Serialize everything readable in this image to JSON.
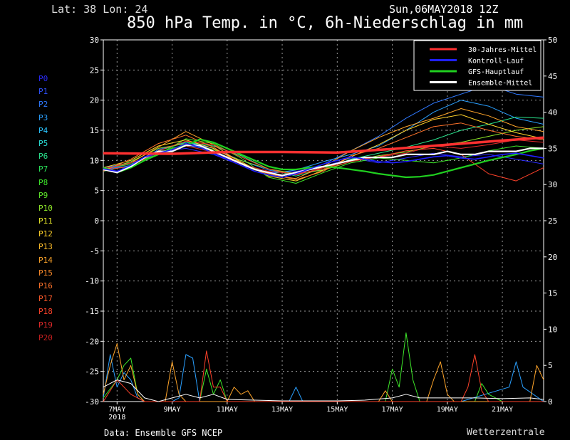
{
  "header": {
    "location": "Lat: 38 Lon: 24",
    "datetime": "Sun,06MAY2018 12Z",
    "title": "850 hPa Temp. in °C, 6h-Niederschlag in mm"
  },
  "footer": {
    "source": "Data: Ensemble GFS NCEP",
    "brand": "Wetterzentrale"
  },
  "members": [
    {
      "name": "P0",
      "color": "#2a2aff"
    },
    {
      "name": "P1",
      "color": "#2f52ff"
    },
    {
      "name": "P2",
      "color": "#2f79ff"
    },
    {
      "name": "P3",
      "color": "#2aa0ff"
    },
    {
      "name": "P4",
      "color": "#2ac4ff"
    },
    {
      "name": "P5",
      "color": "#2ae0d8"
    },
    {
      "name": "P6",
      "color": "#2ae890"
    },
    {
      "name": "P7",
      "color": "#2ae85a"
    },
    {
      "name": "P8",
      "color": "#3ee82a"
    },
    {
      "name": "P9",
      "color": "#5ee82a"
    },
    {
      "name": "P10",
      "color": "#8fe82a"
    },
    {
      "name": "P11",
      "color": "#e8e82a"
    },
    {
      "name": "P12",
      "color": "#ffd22a"
    },
    {
      "name": "P13",
      "color": "#ffbe2a"
    },
    {
      "name": "P14",
      "color": "#ffa52a"
    },
    {
      "name": "P15",
      "color": "#ff8c2a"
    },
    {
      "name": "P16",
      "color": "#ff732a"
    },
    {
      "name": "P17",
      "color": "#ff5a2a"
    },
    {
      "name": "P18",
      "color": "#ff422a"
    },
    {
      "name": "P19",
      "color": "#e52a2a"
    },
    {
      "name": "P20",
      "color": "#c82020"
    }
  ],
  "chart_data": {
    "type": "line",
    "title": "850 hPa Temp. in °C, 6h-Niederschlag in mm",
    "x_tick_labels": [
      "7MAY",
      "9MAY",
      "11MAY",
      "13MAY",
      "15MAY",
      "17MAY",
      "19MAY",
      "21MAY"
    ],
    "x_year_label": "2018",
    "x_tick_days": [
      1,
      3,
      5,
      7,
      9,
      11,
      13,
      15
    ],
    "xlim_days": [
      0.5,
      16.5
    ],
    "y_left_ticks": [
      30,
      25,
      20,
      15,
      10,
      5,
      0,
      -5,
      -10,
      -15,
      -20,
      -25,
      -30
    ],
    "ylim_left": [
      -30,
      30
    ],
    "y_right_ticks": [
      50,
      45,
      40,
      35,
      30,
      25,
      20,
      15,
      10,
      5,
      0
    ],
    "ylim_right": [
      0,
      50
    ],
    "grid": true,
    "legend_position": "top-right",
    "legend": [
      {
        "name": "30-Jahres-Mittel",
        "color": "#ff3030"
      },
      {
        "name": "Kontroll-Lauf",
        "color": "#2020ff"
      },
      {
        "name": "GFS-Hauptlauf",
        "color": "#20d020"
      },
      {
        "name": "Ensemble-Mittel",
        "color": "#ffffff"
      }
    ],
    "series": [
      {
        "name": "30-Jahres-Mittel",
        "color": "#ff3030",
        "axis": "left",
        "x": [
          0.5,
          3,
          5,
          7,
          9,
          11,
          13,
          15,
          16.5
        ],
        "y": [
          11.2,
          11.1,
          11.4,
          11.4,
          11.3,
          11.9,
          12.6,
          13.3,
          13.8
        ]
      },
      {
        "name": "Ensemble-Mittel",
        "color": "#ffffff",
        "axis": "left",
        "x": [
          0.5,
          1,
          1.5,
          2,
          2.5,
          3,
          3.5,
          4,
          4.5,
          5,
          5.5,
          6,
          6.5,
          7,
          7.5,
          8,
          8.5,
          9,
          9.5,
          10,
          10.5,
          11,
          11.5,
          12,
          12.5,
          13,
          13.5,
          14,
          14.5,
          15,
          15.5,
          16,
          16.5
        ],
        "y": [
          8.5,
          8.0,
          9.0,
          10.5,
          11.5,
          11.5,
          12.5,
          12.5,
          11.5,
          10.5,
          9.5,
          8.5,
          8.0,
          7.5,
          8.0,
          8.5,
          9.0,
          9.5,
          10.0,
          10.5,
          10.5,
          10.5,
          11.0,
          11.0,
          11.0,
          11.5,
          11.0,
          11.0,
          11.5,
          11.5,
          11.5,
          12.0,
          12.0
        ]
      },
      {
        "name": "GFS-Hauptlauf",
        "color": "#20d020",
        "axis": "left",
        "x": [
          0.5,
          1,
          1.5,
          2,
          2.5,
          3,
          3.5,
          4,
          4.5,
          5,
          5.5,
          6,
          6.5,
          7,
          7.5,
          8,
          8.5,
          9,
          9.5,
          10,
          10.5,
          11,
          11.5,
          12,
          12.5,
          13,
          13.5,
          14,
          14.5,
          15,
          15.5,
          16,
          16.5
        ],
        "y": [
          8.8,
          8.0,
          8.8,
          10.0,
          11.0,
          12.0,
          12.5,
          13.5,
          13.0,
          12.0,
          11.0,
          10.0,
          9.0,
          8.5,
          8.5,
          8.8,
          9.0,
          8.8,
          8.5,
          8.2,
          7.8,
          7.5,
          7.2,
          7.3,
          7.6,
          8.2,
          8.8,
          9.4,
          10.0,
          10.5,
          11.0,
          11.6,
          12.0
        ]
      },
      {
        "name": "Kontroll-Lauf",
        "color": "#2020ff",
        "axis": "left",
        "x": [
          0.5,
          1,
          1.5,
          2,
          2.5,
          3,
          3.5,
          4,
          4.5,
          5,
          5.5,
          6,
          6.5,
          7,
          7.5,
          8,
          8.5,
          9,
          9.5,
          10,
          10.5,
          11,
          11.5,
          12,
          12.5,
          13,
          13.5,
          14,
          14.5,
          15,
          15.5,
          16,
          16.5
        ],
        "y": [
          8.6,
          8.2,
          9.2,
          10.6,
          11.2,
          11.8,
          12.8,
          12.2,
          11.2,
          10.2,
          9.2,
          8.2,
          7.6,
          7.2,
          7.8,
          8.6,
          9.4,
          10.0,
          10.6,
          10.2,
          9.8,
          9.6,
          9.8,
          10.2,
          10.6,
          10.8,
          10.4,
          10.2,
          10.6,
          11.0,
          11.2,
          10.8,
          10.4
        ]
      },
      {
        "name": "P0",
        "color": "#2a2aff",
        "axis": "left",
        "x": [
          0.5,
          1.5,
          2.5,
          3.5,
          4.5,
          5.5,
          6.5,
          7.5,
          8.5,
          9.5,
          10.5,
          11.5,
          12.5,
          13.5,
          14.5,
          15.5,
          16.5
        ],
        "y": [
          8.4,
          9.4,
          11.4,
          12.0,
          11.0,
          9.2,
          8.0,
          8.2,
          9.0,
          10.4,
          9.6,
          10.4,
          11.2,
          10.6,
          11.0,
          10.2,
          9.4
        ]
      },
      {
        "name": "P2",
        "color": "#2f79ff",
        "axis": "left",
        "x": [
          0.5,
          1.5,
          2.5,
          3.5,
          4.5,
          5.5,
          6.5,
          7.5,
          8.5,
          9.5,
          10.5,
          11.5,
          12.5,
          13.5,
          14.5,
          15.5,
          16.5
        ],
        "y": [
          8.6,
          9.0,
          11.8,
          13.0,
          12.0,
          10.0,
          8.4,
          7.6,
          9.4,
          11.6,
          14.0,
          17.0,
          19.5,
          21.0,
          22.5,
          21.0,
          20.5
        ]
      },
      {
        "name": "P3",
        "color": "#2aa0ff",
        "axis": "left",
        "x": [
          0.5,
          1.5,
          2.5,
          3.5,
          4.5,
          5.5,
          6.5,
          7.5,
          8.5,
          9.5,
          10.5,
          11.5,
          12.5,
          13.5,
          14.5,
          15.5,
          16.5
        ],
        "y": [
          8.8,
          9.6,
          11.0,
          12.6,
          11.6,
          9.6,
          7.8,
          8.4,
          9.8,
          11.0,
          12.4,
          15.0,
          18.0,
          20.0,
          19.0,
          17.0,
          16.0
        ]
      },
      {
        "name": "P6",
        "color": "#2ae890",
        "axis": "left",
        "x": [
          0.5,
          1.5,
          2.5,
          3.5,
          4.5,
          5.5,
          6.5,
          7.5,
          8.5,
          9.5,
          10.5,
          11.5,
          12.5,
          13.5,
          14.5,
          15.5,
          16.5
        ],
        "y": [
          8.2,
          9.2,
          11.6,
          13.0,
          12.4,
          10.8,
          8.6,
          7.4,
          8.6,
          10.2,
          11.2,
          12.2,
          13.4,
          15.0,
          16.0,
          17.2,
          17.0
        ]
      },
      {
        "name": "P8",
        "color": "#3ee82a",
        "axis": "left",
        "x": [
          0.5,
          1.5,
          2.5,
          3.5,
          4.5,
          5.5,
          6.5,
          7.5,
          8.5,
          9.5,
          10.5,
          11.5,
          12.5,
          13.5,
          14.5,
          15.5,
          16.5
        ],
        "y": [
          8.6,
          9.4,
          11.0,
          13.6,
          12.8,
          10.4,
          7.2,
          6.2,
          8.0,
          9.6,
          10.4,
          10.0,
          9.6,
          10.4,
          11.6,
          12.4,
          12.0
        ]
      },
      {
        "name": "P10",
        "color": "#8fe82a",
        "axis": "left",
        "x": [
          0.5,
          1.5,
          2.5,
          3.5,
          4.5,
          5.5,
          6.5,
          7.5,
          8.5,
          9.5,
          10.5,
          11.5,
          12.5,
          13.5,
          14.5,
          15.5,
          16.5
        ],
        "y": [
          8.4,
          9.8,
          12.0,
          12.8,
          11.8,
          10.0,
          8.6,
          7.8,
          8.4,
          9.8,
          10.8,
          11.4,
          12.4,
          13.0,
          14.0,
          15.0,
          15.6
        ]
      },
      {
        "name": "P12",
        "color": "#ffd22a",
        "axis": "left",
        "x": [
          0.5,
          1.5,
          2.5,
          3.5,
          4.5,
          5.5,
          6.5,
          7.5,
          8.5,
          9.5,
          10.5,
          11.5,
          12.5,
          13.5,
          14.5,
          15.5,
          16.5
        ],
        "y": [
          8.8,
          10.0,
          12.4,
          13.4,
          12.0,
          9.8,
          7.4,
          6.6,
          8.4,
          10.6,
          12.6,
          15.0,
          16.8,
          17.6,
          16.0,
          14.6,
          13.6
        ]
      },
      {
        "name": "P14",
        "color": "#ffa52a",
        "axis": "left",
        "x": [
          0.5,
          1.5,
          2.5,
          3.5,
          4.5,
          5.5,
          6.5,
          7.5,
          8.5,
          9.5,
          10.5,
          11.5,
          12.5,
          13.5,
          14.5,
          15.5,
          16.5
        ],
        "y": [
          8.6,
          9.6,
          12.2,
          14.8,
          12.6,
          9.6,
          7.6,
          7.0,
          9.0,
          11.6,
          13.8,
          15.6,
          17.0,
          18.6,
          17.4,
          15.6,
          14.8
        ]
      },
      {
        "name": "P16",
        "color": "#ff732a",
        "axis": "left",
        "x": [
          0.5,
          1.5,
          2.5,
          3.5,
          4.5,
          5.5,
          6.5,
          7.5,
          8.5,
          9.5,
          10.5,
          11.5,
          12.5,
          13.5,
          14.5,
          15.5,
          16.5
        ],
        "y": [
          8.2,
          10.2,
          12.8,
          14.2,
          12.2,
          9.4,
          7.8,
          6.8,
          8.2,
          10.8,
          12.0,
          13.8,
          15.6,
          16.2,
          15.0,
          14.0,
          13.4
        ]
      },
      {
        "name": "P18",
        "color": "#ff422a",
        "axis": "left",
        "x": [
          0.5,
          1.5,
          2.5,
          3.5,
          4.5,
          5.5,
          6.5,
          7.5,
          8.5,
          9.5,
          10.5,
          11.5,
          12.5,
          13.5,
          14.5,
          15.5,
          16.5
        ],
        "y": [
          8.4,
          9.0,
          11.6,
          13.2,
          12.6,
          10.6,
          8.6,
          7.6,
          8.8,
          10.0,
          10.6,
          11.6,
          12.0,
          11.0,
          7.8,
          6.6,
          8.8
        ]
      },
      {
        "name": "P19",
        "color": "#e52a2a",
        "axis": "left",
        "x": [
          0.5,
          1.5,
          2.5,
          3.5,
          4.5,
          5.5,
          6.5,
          7.5,
          8.5,
          9.5,
          10.5,
          11.5,
          12.5,
          13.5,
          14.5,
          15.5,
          16.5
        ],
        "y": [
          8.6,
          9.6,
          11.2,
          12.4,
          11.4,
          9.4,
          8.2,
          7.8,
          8.6,
          9.8,
          10.6,
          11.2,
          12.4,
          12.0,
          12.6,
          13.4,
          13.0
        ]
      },
      {
        "name": "Niederschlag-P3",
        "color": "#2aa0ff",
        "axis": "right",
        "x": [
          0.5,
          0.75,
          1,
          1.25,
          1.5,
          1.75,
          2,
          3,
          3.25,
          3.5,
          3.75,
          4,
          5,
          6,
          7.25,
          7.5,
          7.75,
          11,
          12.5,
          13.5,
          15.25,
          15.5,
          15.75,
          16.5
        ],
        "y": [
          0.5,
          6.5,
          2,
          4,
          3,
          0.5,
          0,
          0,
          0.5,
          6.5,
          6,
          0,
          0,
          0,
          0,
          2,
          0,
          0,
          0,
          0,
          2,
          5.5,
          2,
          0
        ]
      },
      {
        "name": "Niederschlag-P8",
        "color": "#3ee82a",
        "axis": "right",
        "x": [
          0.5,
          1,
          1.25,
          1.5,
          1.75,
          2,
          4,
          4.25,
          4.5,
          4.75,
          5,
          10.75,
          11,
          11.25,
          11.5,
          11.75,
          12,
          14,
          14.25,
          14.5,
          15,
          16.5
        ],
        "y": [
          0.5,
          3,
          5,
          6,
          1,
          0,
          0,
          4.5,
          1,
          3,
          0,
          0,
          4.5,
          2,
          9.5,
          3,
          0,
          0,
          2.5,
          1,
          0,
          0
        ]
      },
      {
        "name": "Niederschlag-P14",
        "color": "#ffa52a",
        "axis": "right",
        "x": [
          0.5,
          0.75,
          1,
          1.25,
          1.5,
          1.75,
          2,
          2.75,
          3,
          3.25,
          3.5,
          5,
          5.25,
          5.5,
          5.75,
          6,
          10.5,
          10.75,
          11,
          12.25,
          12.5,
          12.75,
          13,
          13.25,
          16,
          16.25,
          16.5
        ],
        "y": [
          1,
          5,
          8,
          3,
          5,
          1,
          0,
          0,
          5.5,
          1,
          0,
          0,
          2,
          1,
          1.5,
          0,
          0,
          1.5,
          0,
          0,
          3,
          5.5,
          1,
          0,
          0,
          5,
          3
        ]
      },
      {
        "name": "Niederschlag-P18",
        "color": "#ff422a",
        "axis": "right",
        "x": [
          0.5,
          1,
          1.25,
          1.5,
          2,
          4,
          4.25,
          4.5,
          4.75,
          5,
          13.5,
          13.75,
          14,
          14.25,
          14.5,
          16.5
        ],
        "y": [
          0,
          3,
          2,
          1,
          0,
          0,
          7,
          2,
          2,
          0,
          0,
          2,
          6.5,
          1.5,
          0,
          0
        ]
      },
      {
        "name": "Niederschlag-Mittel",
        "color": "#ffffff",
        "axis": "right",
        "x": [
          0.5,
          1,
          1.5,
          2,
          2.5,
          3,
          3.5,
          4,
          4.5,
          5,
          6,
          7,
          8,
          9,
          10,
          11,
          11.5,
          12,
          13,
          14,
          15,
          16,
          16.5
        ],
        "y": [
          2,
          3,
          2.5,
          0.5,
          0,
          0.5,
          1,
          0.5,
          1,
          0.3,
          0.2,
          0.1,
          0.1,
          0.1,
          0.2,
          0.5,
          1,
          0.5,
          0.5,
          0.5,
          0.4,
          0.5,
          0.3
        ]
      }
    ]
  }
}
